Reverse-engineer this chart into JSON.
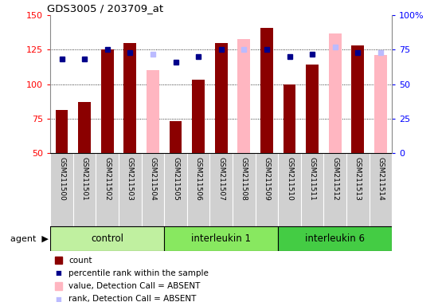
{
  "title": "GDS3005 / 203709_at",
  "samples": [
    "GSM211500",
    "GSM211501",
    "GSM211502",
    "GSM211503",
    "GSM211504",
    "GSM211505",
    "GSM211506",
    "GSM211507",
    "GSM211508",
    "GSM211509",
    "GSM211510",
    "GSM211511",
    "GSM211512",
    "GSM211513",
    "GSM211514"
  ],
  "groups": [
    {
      "label": "control",
      "start": 0,
      "end": 4,
      "color": "#b8f0a0"
    },
    {
      "label": "interleukin 1",
      "start": 5,
      "end": 9,
      "color": "#80e860"
    },
    {
      "label": "interleukin 6",
      "start": 10,
      "end": 14,
      "color": "#40cc40"
    }
  ],
  "count_present": [
    81,
    87,
    125,
    130,
    null,
    73,
    103,
    130,
    null,
    141,
    100,
    114,
    null,
    128,
    null
  ],
  "count_absent": [
    null,
    null,
    null,
    null,
    110,
    null,
    null,
    null,
    133,
    null,
    null,
    null,
    137,
    null,
    121
  ],
  "rank_present": [
    68,
    68,
    75,
    73,
    null,
    66,
    70,
    75,
    null,
    75,
    70,
    72,
    null,
    73,
    null
  ],
  "rank_absent": [
    null,
    null,
    null,
    null,
    72,
    null,
    null,
    null,
    75,
    null,
    null,
    null,
    77,
    null,
    73
  ],
  "ylim_left": [
    50,
    150
  ],
  "ylim_right": [
    0,
    100
  ],
  "yticks_left": [
    50,
    75,
    100,
    125,
    150
  ],
  "yticks_right": [
    0,
    25,
    50,
    75,
    100
  ],
  "dark_red": "#8B0000",
  "light_pink": "#FFB6C1",
  "dark_blue": "#00008B",
  "light_blue": "#BBBBFF",
  "grid_lines": [
    75,
    100,
    125
  ],
  "legend_items": [
    {
      "color": "#8B0000",
      "kind": "bar",
      "label": "count"
    },
    {
      "color": "#00008B",
      "kind": "square",
      "label": "percentile rank within the sample"
    },
    {
      "color": "#FFB6C1",
      "kind": "bar",
      "label": "value, Detection Call = ABSENT"
    },
    {
      "color": "#BBBBFF",
      "kind": "square",
      "label": "rank, Detection Call = ABSENT"
    }
  ],
  "xlabel_bg": "#d0d0d0",
  "cell_border": "#888888"
}
